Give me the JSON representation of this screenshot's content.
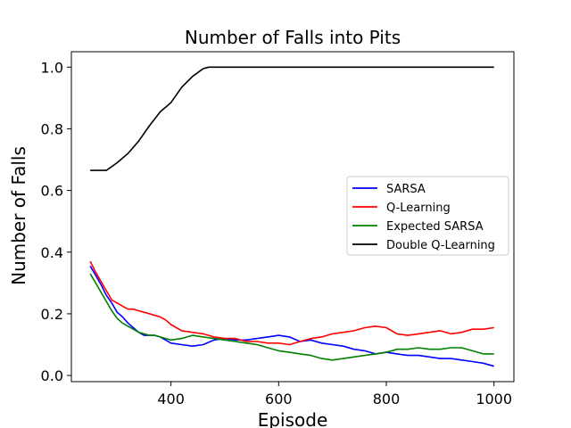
{
  "chart_data": {
    "type": "line",
    "title": "Number of Falls into Pits",
    "xlabel": "Episode",
    "ylabel": "Number of Falls",
    "xlim": [
      215,
      1037
    ],
    "ylim": [
      -0.02,
      1.05
    ],
    "xticks": [
      400,
      600,
      800,
      1000
    ],
    "yticks": [
      0.0,
      0.2,
      0.4,
      0.6,
      0.8,
      1.0
    ],
    "grid": false,
    "legend_position": "center-right",
    "series": [
      {
        "name": "SARSA",
        "color": "#0000ff",
        "x": [
          250,
          260,
          270,
          280,
          290,
          300,
          310,
          320,
          330,
          340,
          350,
          360,
          370,
          380,
          390,
          400,
          420,
          440,
          460,
          480,
          500,
          520,
          540,
          560,
          580,
          600,
          620,
          640,
          660,
          680,
          700,
          720,
          740,
          760,
          780,
          800,
          820,
          840,
          860,
          880,
          900,
          920,
          940,
          960,
          980,
          1000
        ],
        "y": [
          0.355,
          0.325,
          0.295,
          0.26,
          0.235,
          0.205,
          0.19,
          0.17,
          0.155,
          0.14,
          0.13,
          0.13,
          0.13,
          0.125,
          0.115,
          0.105,
          0.1,
          0.095,
          0.1,
          0.115,
          0.12,
          0.115,
          0.115,
          0.12,
          0.125,
          0.13,
          0.125,
          0.11,
          0.115,
          0.105,
          0.1,
          0.095,
          0.085,
          0.08,
          0.07,
          0.075,
          0.07,
          0.065,
          0.065,
          0.06,
          0.055,
          0.055,
          0.05,
          0.045,
          0.04,
          0.03
        ]
      },
      {
        "name": "Q-Learning",
        "color": "#ff0000",
        "x": [
          250,
          260,
          270,
          280,
          290,
          300,
          310,
          320,
          330,
          340,
          350,
          360,
          370,
          380,
          390,
          400,
          420,
          440,
          460,
          480,
          500,
          520,
          540,
          560,
          580,
          600,
          620,
          640,
          660,
          680,
          700,
          720,
          740,
          760,
          780,
          800,
          820,
          840,
          860,
          880,
          900,
          920,
          940,
          960,
          980,
          1000
        ],
        "y": [
          0.37,
          0.335,
          0.305,
          0.275,
          0.245,
          0.235,
          0.225,
          0.215,
          0.215,
          0.21,
          0.205,
          0.2,
          0.195,
          0.19,
          0.18,
          0.165,
          0.145,
          0.14,
          0.135,
          0.125,
          0.12,
          0.12,
          0.11,
          0.11,
          0.105,
          0.105,
          0.1,
          0.11,
          0.12,
          0.125,
          0.135,
          0.14,
          0.145,
          0.155,
          0.16,
          0.155,
          0.135,
          0.13,
          0.135,
          0.14,
          0.145,
          0.135,
          0.14,
          0.15,
          0.15,
          0.155
        ]
      },
      {
        "name": "Expected SARSA",
        "color": "#008000",
        "x": [
          250,
          260,
          270,
          280,
          290,
          300,
          310,
          320,
          330,
          340,
          350,
          360,
          370,
          380,
          390,
          400,
          420,
          440,
          460,
          480,
          500,
          520,
          540,
          560,
          580,
          600,
          620,
          640,
          660,
          680,
          700,
          720,
          740,
          760,
          780,
          800,
          820,
          840,
          860,
          880,
          900,
          920,
          940,
          960,
          980,
          1000
        ],
        "y": [
          0.33,
          0.3,
          0.27,
          0.24,
          0.21,
          0.185,
          0.17,
          0.16,
          0.15,
          0.14,
          0.135,
          0.13,
          0.13,
          0.125,
          0.12,
          0.115,
          0.12,
          0.13,
          0.125,
          0.12,
          0.115,
          0.11,
          0.105,
          0.1,
          0.09,
          0.08,
          0.075,
          0.07,
          0.065,
          0.055,
          0.05,
          0.055,
          0.06,
          0.065,
          0.07,
          0.075,
          0.085,
          0.085,
          0.09,
          0.085,
          0.085,
          0.09,
          0.09,
          0.08,
          0.07,
          0.07
        ]
      },
      {
        "name": "Double Q-Learning",
        "color": "#000000",
        "x": [
          250,
          280,
          300,
          320,
          340,
          360,
          380,
          400,
          420,
          440,
          460,
          470,
          500,
          600,
          700,
          800,
          900,
          1000
        ],
        "y": [
          0.665,
          0.665,
          0.69,
          0.72,
          0.76,
          0.81,
          0.855,
          0.885,
          0.935,
          0.97,
          0.995,
          1.0,
          1.0,
          1.0,
          1.0,
          1.0,
          1.0,
          1.0
        ]
      }
    ]
  }
}
